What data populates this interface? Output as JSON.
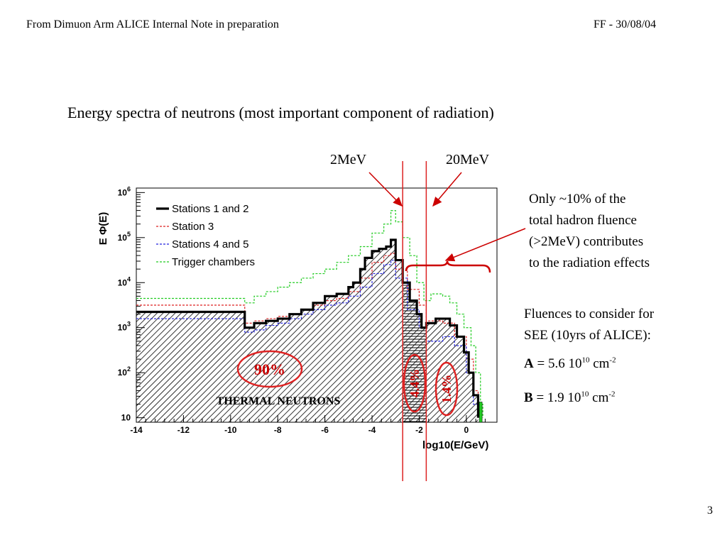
{
  "header": {
    "left": "From Dimuon Arm ALICE Internal Note in preparation",
    "right": "FF - 30/08/04"
  },
  "slide": {
    "title": "Energy spectra of neutrons (most important component of radiation)",
    "label_2mev": "2MeV",
    "label_20mev": "20MeV",
    "note_lines": [
      "Only ~10% of the",
      "total hadron fluence",
      "(>2MeV) contributes",
      "to the radiation effects"
    ],
    "fluence_intro_lines": [
      "Fluences to consider for",
      "SEE (10yrs of ALICE):"
    ],
    "fluence_a": {
      "label": "A",
      "eq": " = 5.6 10",
      "exp": "10",
      "unit": " cm",
      "unit_exp": "-2"
    },
    "fluence_b": {
      "label": "B",
      "eq": " = 1.9 10",
      "exp": "10",
      "unit": " cm",
      "unit_exp": "-2"
    },
    "page_number": "3"
  },
  "chart_data": {
    "type": "line",
    "ylabel": "E Φ(E)",
    "xlabel": "log10(E/GeV)",
    "xlim": [
      -14,
      1.3
    ],
    "ylog": true,
    "ylim_log10": [
      0.9,
      6.1
    ],
    "x_ticks": [
      "-14",
      "-12",
      "-10",
      "-8",
      "-6",
      "-4",
      "-2",
      "0"
    ],
    "y_ticks": [
      {
        "base": "10",
        "exp": ""
      },
      {
        "base": "10",
        "exp": "2"
      },
      {
        "base": "10",
        "exp": "3"
      },
      {
        "base": "10",
        "exp": "4"
      },
      {
        "base": "10",
        "exp": "5"
      },
      {
        "base": "10",
        "exp": "6"
      }
    ],
    "legend": [
      "Stations 1 and 2",
      "Station 3",
      "Stations 4 and 5",
      "Trigger chambers"
    ],
    "legend_position": "top-left",
    "series": [
      {
        "name": "Stations 1 and 2",
        "color": "#000000",
        "style": "solid-thick",
        "points": [
          [
            -14,
            3.35
          ],
          [
            -9.4,
            3.35
          ],
          [
            -9.4,
            3.0
          ],
          [
            -9.0,
            3.1
          ],
          [
            -8.5,
            3.15
          ],
          [
            -8.0,
            3.2
          ],
          [
            -7.5,
            3.3
          ],
          [
            -7.0,
            3.4
          ],
          [
            -6.5,
            3.55
          ],
          [
            -6.0,
            3.7
          ],
          [
            -5.5,
            3.75
          ],
          [
            -5.0,
            3.9
          ],
          [
            -4.8,
            4.0
          ],
          [
            -4.5,
            4.3
          ],
          [
            -4.3,
            4.55
          ],
          [
            -4.0,
            4.7
          ],
          [
            -3.7,
            4.75
          ],
          [
            -3.4,
            4.8
          ],
          [
            -3.2,
            4.95
          ],
          [
            -3.0,
            4.5
          ],
          [
            -2.7,
            4.0
          ],
          [
            -2.4,
            3.6
          ],
          [
            -2.1,
            3.3
          ],
          [
            -1.9,
            3.0
          ],
          [
            -1.7,
            3.1
          ],
          [
            -1.3,
            3.2
          ],
          [
            -1.0,
            3.2
          ],
          [
            -0.7,
            3.05
          ],
          [
            -0.4,
            2.8
          ],
          [
            -0.1,
            2.45
          ],
          [
            0.1,
            2.0
          ],
          [
            0.3,
            1.5
          ],
          [
            0.5,
            1.0
          ]
        ]
      },
      {
        "name": "Station 3",
        "color": "#dd2222",
        "style": "dashed",
        "points": [
          [
            -14,
            3.5
          ],
          [
            -9.4,
            3.5
          ],
          [
            -9.4,
            3.1
          ],
          [
            -9.0,
            3.15
          ],
          [
            -8.5,
            3.2
          ],
          [
            -8.0,
            3.25
          ],
          [
            -7.5,
            3.3
          ],
          [
            -7.0,
            3.4
          ],
          [
            -6.5,
            3.5
          ],
          [
            -6.0,
            3.6
          ],
          [
            -5.5,
            3.65
          ],
          [
            -5.0,
            3.8
          ],
          [
            -4.5,
            4.1
          ],
          [
            -4.0,
            4.45
          ],
          [
            -3.5,
            4.6
          ],
          [
            -3.2,
            4.65
          ],
          [
            -3.0,
            4.3
          ],
          [
            -2.5,
            3.85
          ],
          [
            -2.0,
            3.5
          ],
          [
            -1.7,
            3.15
          ],
          [
            -1.0,
            3.1
          ],
          [
            -0.5,
            2.8
          ],
          [
            0.0,
            2.3
          ],
          [
            0.3,
            1.6
          ],
          [
            0.5,
            1.0
          ]
        ]
      },
      {
        "name": "Stations 4 and 5",
        "color": "#2222dd",
        "style": "dashed",
        "points": [
          [
            -14,
            3.2
          ],
          [
            -9.4,
            3.2
          ],
          [
            -9.4,
            2.9
          ],
          [
            -9.0,
            2.95
          ],
          [
            -8.5,
            3.05
          ],
          [
            -8.0,
            3.1
          ],
          [
            -7.5,
            3.2
          ],
          [
            -7.0,
            3.3
          ],
          [
            -6.5,
            3.4
          ],
          [
            -6.0,
            3.5
          ],
          [
            -5.5,
            3.55
          ],
          [
            -5.0,
            3.7
          ],
          [
            -4.5,
            3.9
          ],
          [
            -4.0,
            4.2
          ],
          [
            -3.5,
            4.4
          ],
          [
            -3.2,
            4.5
          ],
          [
            -3.0,
            4.1
          ],
          [
            -2.5,
            3.4
          ],
          [
            -2.0,
            3.0
          ],
          [
            -1.7,
            2.7
          ],
          [
            -1.0,
            2.8
          ],
          [
            -0.5,
            2.6
          ],
          [
            0.0,
            2.0
          ],
          [
            0.3,
            1.3
          ],
          [
            0.5,
            1.0
          ]
        ]
      },
      {
        "name": "Trigger chambers",
        "color": "#22cc22",
        "style": "dashed",
        "points": [
          [
            -14,
            3.65
          ],
          [
            -9.4,
            3.65
          ],
          [
            -9.4,
            3.55
          ],
          [
            -9.0,
            3.7
          ],
          [
            -8.5,
            3.8
          ],
          [
            -8.0,
            3.9
          ],
          [
            -7.5,
            4.0
          ],
          [
            -7.0,
            4.1
          ],
          [
            -6.5,
            4.2
          ],
          [
            -6.0,
            4.3
          ],
          [
            -5.5,
            4.45
          ],
          [
            -5.0,
            4.6
          ],
          [
            -4.5,
            4.8
          ],
          [
            -4.0,
            5.1
          ],
          [
            -3.5,
            5.3
          ],
          [
            -3.2,
            5.6
          ],
          [
            -3.0,
            5.35
          ],
          [
            -2.7,
            5.0
          ],
          [
            -2.4,
            4.6
          ],
          [
            -2.1,
            4.0
          ],
          [
            -1.8,
            3.6
          ],
          [
            -1.5,
            3.75
          ],
          [
            -1.0,
            3.7
          ],
          [
            -0.7,
            3.55
          ],
          [
            -0.4,
            3.3
          ],
          [
            -0.1,
            3.0
          ],
          [
            0.2,
            2.6
          ],
          [
            0.4,
            2.0
          ],
          [
            0.6,
            1.3
          ],
          [
            0.7,
            1.0
          ]
        ]
      }
    ],
    "cut_lines_x": [
      -2.7,
      -1.7
    ],
    "annotations": {
      "left_region": "90%",
      "middle_region": "4.4%",
      "right_region": "1.4%",
      "thermal_label": "THERMAL NEUTRONS"
    }
  }
}
